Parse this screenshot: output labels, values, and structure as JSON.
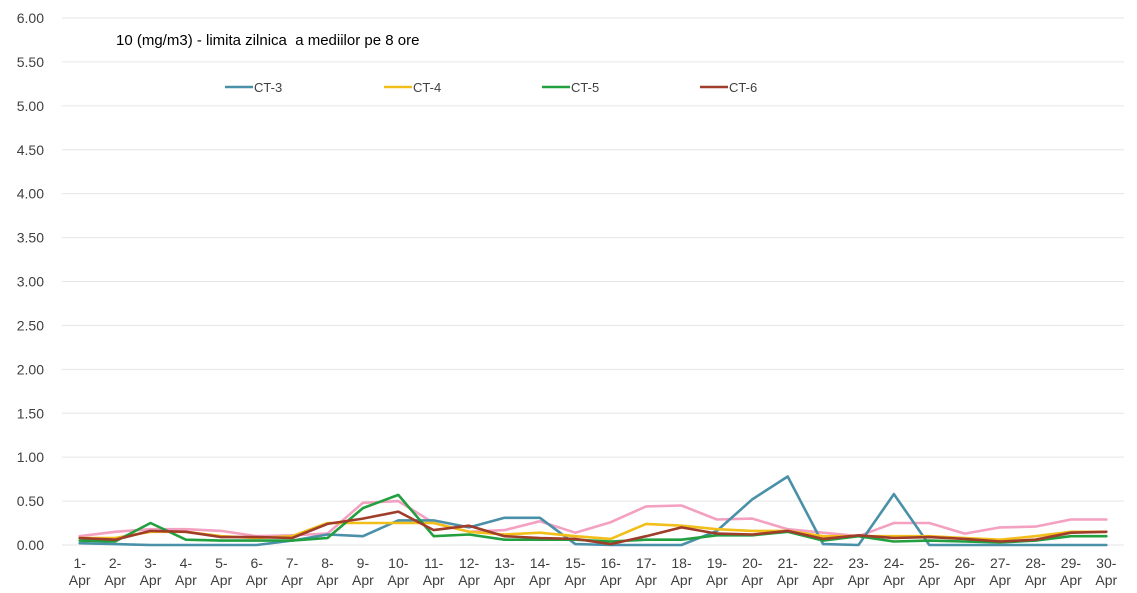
{
  "chart_data": {
    "type": "line",
    "title": "10 (mg/m3) - limita zilnica  a mediilor pe 8 ore",
    "xlabel": "",
    "ylabel": "",
    "ylim": [
      0,
      6
    ],
    "ytick_step": 0.5,
    "grid": "horizontal",
    "legend_position": "top",
    "categories": [
      "1-Apr",
      "2-Apr",
      "3-Apr",
      "4-Apr",
      "5-Apr",
      "6-Apr",
      "7-Apr",
      "8-Apr",
      "9-Apr",
      "10-Apr",
      "11-Apr",
      "12-Apr",
      "13-Apr",
      "14-Apr",
      "15-Apr",
      "16-Apr",
      "17-Apr",
      "18-Apr",
      "19-Apr",
      "20-Apr",
      "21-Apr",
      "22-Apr",
      "23-Apr",
      "24-Apr",
      "25-Apr",
      "26-Apr",
      "27-Apr",
      "28-Apr",
      "29-Apr",
      "30-Apr"
    ],
    "series": [
      {
        "name": "CT-3",
        "color": "#4a90a8",
        "show_legend": true,
        "values": [
          0.02,
          0.01,
          0.0,
          0.0,
          0.0,
          0.0,
          0.05,
          0.12,
          0.1,
          0.28,
          0.28,
          0.2,
          0.31,
          0.31,
          0.01,
          0.0,
          0.0,
          0.0,
          0.16,
          0.52,
          0.78,
          0.01,
          0.0,
          0.58,
          0.0,
          0.0,
          0.0,
          0.0,
          0.0,
          0.0
        ]
      },
      {
        "name": "CT-4",
        "color": "#f2be1a",
        "show_legend": true,
        "values": [
          0.08,
          0.08,
          0.15,
          0.15,
          0.1,
          0.08,
          0.1,
          0.25,
          0.25,
          0.25,
          0.25,
          0.15,
          0.12,
          0.14,
          0.1,
          0.07,
          0.24,
          0.22,
          0.18,
          0.16,
          0.16,
          0.1,
          0.1,
          0.1,
          0.1,
          0.08,
          0.06,
          0.1,
          0.15,
          0.15
        ]
      },
      {
        "name": "CT-5",
        "color": "#22a040",
        "show_legend": true,
        "values": [
          0.05,
          0.04,
          0.25,
          0.06,
          0.05,
          0.05,
          0.05,
          0.08,
          0.42,
          0.57,
          0.1,
          0.12,
          0.06,
          0.06,
          0.06,
          0.04,
          0.06,
          0.06,
          0.11,
          0.11,
          0.15,
          0.05,
          0.1,
          0.04,
          0.05,
          0.04,
          0.03,
          0.05,
          0.1,
          0.1
        ]
      },
      {
        "name": "CT-6",
        "color": "#a03c2a",
        "show_legend": true,
        "values": [
          0.08,
          0.06,
          0.16,
          0.15,
          0.09,
          0.09,
          0.08,
          0.24,
          0.3,
          0.38,
          0.17,
          0.22,
          0.1,
          0.08,
          0.07,
          0.01,
          0.1,
          0.2,
          0.13,
          0.12,
          0.16,
          0.07,
          0.11,
          0.08,
          0.09,
          0.07,
          0.04,
          0.06,
          0.14,
          0.15
        ]
      },
      {
        "name": "",
        "color": "#f4a0c0",
        "show_legend": false,
        "values": [
          0.1,
          0.15,
          0.18,
          0.18,
          0.16,
          0.1,
          0.11,
          0.13,
          0.48,
          0.5,
          0.25,
          0.15,
          0.17,
          0.27,
          0.14,
          0.26,
          0.44,
          0.45,
          0.29,
          0.3,
          0.18,
          0.14,
          0.1,
          0.25,
          0.25,
          0.13,
          0.2,
          0.21,
          0.29,
          0.29
        ]
      }
    ]
  }
}
